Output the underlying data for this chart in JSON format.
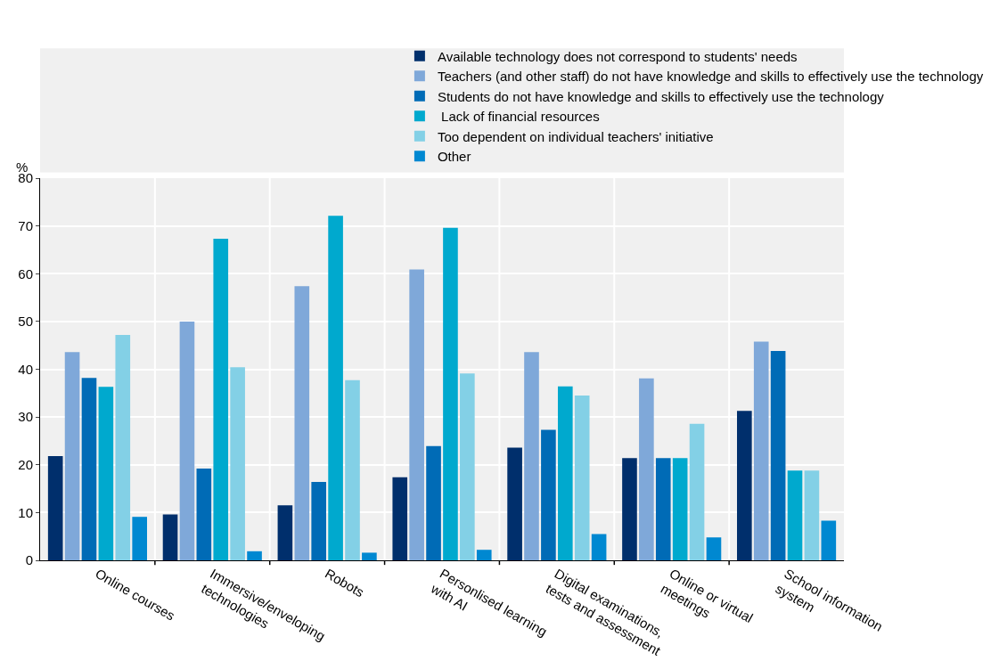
{
  "chart_data": {
    "type": "bar",
    "ylabel": "%",
    "categories": [
      "Online courses",
      "Immersive/enveloping technologies",
      "Robots",
      "Personlised learning with AI",
      "Digital examinations, tests and assessment",
      "Online or virtual meetings",
      "School information system"
    ],
    "series": [
      {
        "name": "Available technology does not correspond to students' needs",
        "color": "#002f6c",
        "values": [
          21.8,
          9.6,
          11.5,
          17.4,
          23.6,
          21.4,
          31.3
        ]
      },
      {
        "name": "Teachers (and other staff) do not have knowledge and skills to effectively use the technology",
        "color": "#7fa8d9",
        "values": [
          43.6,
          50.0,
          57.4,
          60.9,
          43.6,
          38.1,
          45.8
        ]
      },
      {
        "name": "Students do not have knowledge and skills to effectively use the technology",
        "color": "#006bb6",
        "values": [
          38.2,
          19.2,
          16.4,
          23.9,
          27.3,
          21.4,
          43.8
        ]
      },
      {
        "name": " Lack of financial resources",
        "color": "#00a9ce",
        "values": [
          36.3,
          67.3,
          72.1,
          69.6,
          36.4,
          21.4,
          18.8
        ]
      },
      {
        "name": "Too dependent on individual teachers' initiative",
        "color": "#83d0e6",
        "values": [
          47.2,
          40.4,
          37.7,
          39.1,
          34.5,
          28.6,
          18.8
        ]
      },
      {
        "name": "Other",
        "color": "#0088d1",
        "values": [
          9.1,
          1.9,
          1.6,
          2.2,
          5.5,
          4.8,
          8.3
        ]
      }
    ],
    "ylim": [
      0,
      80
    ],
    "yticks": [
      0,
      10,
      20,
      30,
      40,
      50,
      60,
      70,
      80
    ],
    "grid": "y",
    "legend": "top"
  }
}
